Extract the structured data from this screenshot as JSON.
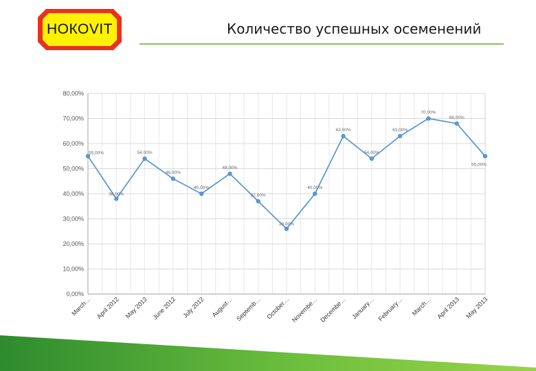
{
  "logo": {
    "text": "НОКОVIT"
  },
  "title": "Количество успешных осеменений",
  "chart_data": {
    "type": "line",
    "categories": [
      "March…",
      "April 2012",
      "May 2012",
      "June 2012",
      "July 2012",
      "August…",
      "Septemb…",
      "October…",
      "Novembe…",
      "Decembe…",
      "January…",
      "February…",
      "March…",
      "April 2013",
      "May 2013"
    ],
    "values": [
      55,
      38,
      54,
      46,
      40,
      48,
      37,
      26,
      40,
      63,
      54,
      63,
      70,
      68,
      55
    ],
    "data_labels": [
      "55,00%",
      "38,00%",
      "54,00%",
      "46,00%",
      "40,00%",
      "48,00%",
      "37,00%",
      "26,00%",
      "40,00%",
      "63,00%",
      "54,00%",
      "63,00%",
      "70,00%",
      "68,00%",
      "55,00%"
    ],
    "y_ticks": [
      "0,00%",
      "10,00%",
      "20,00%",
      "30,00%",
      "40,00%",
      "50,00%",
      "60,00%",
      "70,00%",
      "80,00%"
    ],
    "ylim": [
      0,
      80
    ],
    "grid": true,
    "line_color": "#5b9bd5"
  }
}
